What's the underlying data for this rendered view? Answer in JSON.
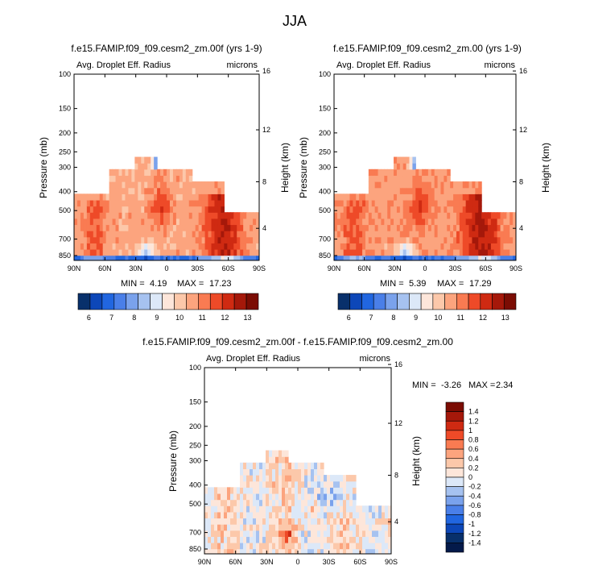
{
  "figure_title": "JJA",
  "chart_data": [
    {
      "type": "heatmap",
      "title": "f.e15.FAMIP.f09_f09.cesm2_zm.00f (yrs 1-9)",
      "left_label": "Avg. Droplet Eff. Radius",
      "right_label": "microns",
      "xlabel": "",
      "ylabel": "Pressure (mb)",
      "ylabel_right": "Height (km)",
      "xlim": [
        90,
        -90
      ],
      "ylim": [
        900,
        100
      ],
      "x_ticks": [
        "90N",
        "60N",
        "30N",
        "0",
        "30S",
        "60S",
        "90S"
      ],
      "y_ticks": [
        "100",
        "150",
        "200",
        "250",
        "300",
        "400",
        "500",
        "700",
        "850"
      ],
      "y_ticks_right": [
        "16",
        "12",
        "8",
        "4"
      ],
      "stats": {
        "min_label": "MIN =",
        "min": "4.19",
        "max_label": "MAX =",
        "max": "17.23"
      },
      "colorbar": {
        "orientation": "horizontal",
        "labels": [
          "6",
          "7",
          "8",
          "9",
          "10",
          "11",
          "12",
          "13"
        ],
        "colors": [
          "#08306b",
          "#0d47b8",
          "#2166e0",
          "#4a7fe8",
          "#7aa2ec",
          "#a6c2f0",
          "#dce8f8",
          "#fde6da",
          "#fcc8aa",
          "#fca47e",
          "#f97b52",
          "#ee4a28",
          "#cf2a12",
          "#a5180a",
          "#7b0c03"
        ]
      },
      "field": {
        "z_range": [
          4.19,
          17.23
        ],
        "description_levels": "droplet effective radius, microns"
      }
    },
    {
      "type": "heatmap",
      "title": "f.e15.FAMIP.f09_f09.cesm2_zm.00 (yrs 1-9)",
      "left_label": "Avg. Droplet Eff. Radius",
      "right_label": "microns",
      "xlabel": "",
      "ylabel": "Pressure (mb)",
      "ylabel_right": "Height (km)",
      "xlim": [
        90,
        -90
      ],
      "ylim": [
        900,
        100
      ],
      "x_ticks": [
        "90N",
        "60N",
        "30N",
        "0",
        "30S",
        "60S",
        "90S"
      ],
      "y_ticks": [
        "100",
        "150",
        "200",
        "250",
        "300",
        "400",
        "500",
        "700",
        "850"
      ],
      "y_ticks_right": [
        "16",
        "12",
        "8",
        "4"
      ],
      "stats": {
        "min_label": "MIN =",
        "min": "5.39",
        "max_label": "MAX =",
        "max": "17.29"
      },
      "colorbar": {
        "orientation": "horizontal",
        "labels": [
          "6",
          "7",
          "8",
          "9",
          "10",
          "11",
          "12",
          "13"
        ],
        "colors": [
          "#08306b",
          "#0d47b8",
          "#2166e0",
          "#4a7fe8",
          "#7aa2ec",
          "#a6c2f0",
          "#dce8f8",
          "#fde6da",
          "#fcc8aa",
          "#fca47e",
          "#f97b52",
          "#ee4a28",
          "#cf2a12",
          "#a5180a",
          "#7b0c03"
        ]
      },
      "field": {
        "z_range": [
          5.39,
          17.29
        ],
        "description_levels": "droplet effective radius, microns"
      }
    },
    {
      "type": "heatmap",
      "title": "f.e15.FAMIP.f09_f09.cesm2_zm.00f - f.e15.FAMIP.f09_f09.cesm2_zm.00",
      "left_label": "Avg. Droplet Eff. Radius",
      "right_label": "microns",
      "xlabel": "",
      "ylabel": "Pressure (mb)",
      "ylabel_right": "Height (km)",
      "xlim": [
        90,
        -90
      ],
      "ylim": [
        900,
        100
      ],
      "x_ticks": [
        "90N",
        "60N",
        "30N",
        "0",
        "30S",
        "60S",
        "90S"
      ],
      "y_ticks": [
        "100",
        "150",
        "200",
        "250",
        "300",
        "400",
        "500",
        "700",
        "850"
      ],
      "y_ticks_right": [
        "16",
        "12",
        "8",
        "4"
      ],
      "stats": {
        "min_label": "MIN =",
        "min": "-3.26",
        "max_label": "MAX =",
        "max": "2.34"
      },
      "colorbar": {
        "orientation": "vertical",
        "labels": [
          "1.4",
          "1.2",
          "1",
          "0.8",
          "0.6",
          "0.4",
          "0.2",
          "0",
          "-0.2",
          "-0.4",
          "-0.6",
          "-0.8",
          "-1",
          "-1.2",
          "-1.4"
        ],
        "colors": [
          "#7b0c03",
          "#a5180a",
          "#cf2a12",
          "#ee4a28",
          "#f97b52",
          "#fca47e",
          "#fcc8aa",
          "#fde6da",
          "#dce8f8",
          "#a6c2f0",
          "#7aa2ec",
          "#4a7fe8",
          "#2166e0",
          "#0d47b8",
          "#08306b",
          "#041a4a"
        ]
      },
      "field": {
        "z_range": [
          -3.26,
          2.34
        ],
        "description_levels": "difference, microns"
      }
    }
  ]
}
